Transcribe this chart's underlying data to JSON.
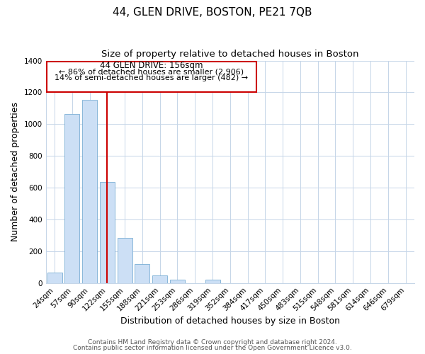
{
  "title": "44, GLEN DRIVE, BOSTON, PE21 7QB",
  "subtitle": "Size of property relative to detached houses in Boston",
  "xlabel": "Distribution of detached houses by size in Boston",
  "ylabel": "Number of detached properties",
  "categories": [
    "24sqm",
    "57sqm",
    "90sqm",
    "122sqm",
    "155sqm",
    "188sqm",
    "221sqm",
    "253sqm",
    "286sqm",
    "319sqm",
    "352sqm",
    "384sqm",
    "417sqm",
    "450sqm",
    "483sqm",
    "515sqm",
    "548sqm",
    "581sqm",
    "614sqm",
    "646sqm",
    "679sqm"
  ],
  "values": [
    65,
    1065,
    1155,
    635,
    285,
    120,
    48,
    22,
    0,
    22,
    0,
    0,
    0,
    0,
    0,
    0,
    0,
    0,
    0,
    0,
    0
  ],
  "bar_color": "#ccdff5",
  "bar_edge_color": "#7aaed4",
  "vline_x_index": 3.0,
  "vline_color": "#cc0000",
  "annotation_line1": "44 GLEN DRIVE: 156sqm",
  "annotation_line2": "← 86% of detached houses are smaller (2,906)",
  "annotation_line3": "14% of semi-detached houses are larger (482) →",
  "annotation_box_color": "#cc0000",
  "ylim": [
    0,
    1400
  ],
  "yticks": [
    0,
    200,
    400,
    600,
    800,
    1000,
    1200,
    1400
  ],
  "footer_line1": "Contains HM Land Registry data © Crown copyright and database right 2024.",
  "footer_line2": "Contains public sector information licensed under the Open Government Licence v3.0.",
  "background_color": "#ffffff",
  "grid_color": "#c5d5e8",
  "title_fontsize": 11,
  "subtitle_fontsize": 9.5,
  "axis_label_fontsize": 9,
  "tick_fontsize": 7.5,
  "footer_fontsize": 6.5
}
